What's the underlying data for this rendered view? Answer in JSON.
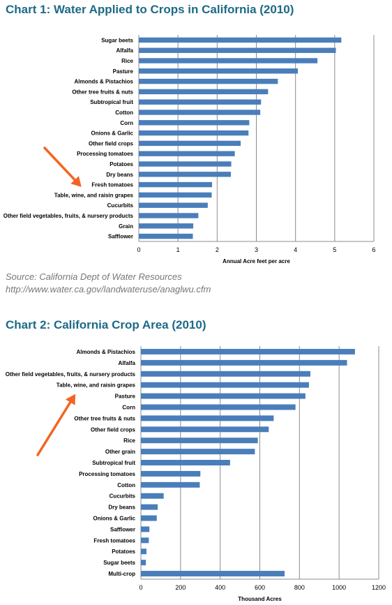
{
  "page": {
    "title1": "Chart 1: Water Applied to Crops in California (2010)",
    "title2": "Chart 2: California Crop Area (2010)",
    "source_line_1": "Source: California Dept of Water Resources",
    "source_line_2": "http://www.water.ca.gov/landwateruse/anaglwu.cfm"
  },
  "colors": {
    "bar": "#4a7ebb",
    "grid": "#8c8c8c",
    "title": "#1d6a86",
    "arrow": "#f26522"
  },
  "chart_data": [
    {
      "type": "bar",
      "orientation": "horizontal",
      "title": "Chart 1: Water Applied to Crops in California (2010)",
      "xlabel": "Annual Acre feet per acre",
      "ylabel": "",
      "xlim": [
        0,
        6
      ],
      "xticks": [
        "0",
        "1",
        "2",
        "3",
        "4",
        "5",
        "6"
      ],
      "grid": true,
      "categories": [
        "Sugar beets",
        "Alfalfa",
        "Rice",
        "Pasture",
        "Almonds & Pistachios",
        "Other tree fruits & nuts",
        "Subtropical fruit",
        "Cotton",
        "Corn",
        "Onions & Garlic",
        "Other field crops",
        "Processing tomatoes",
        "Potatoes",
        "Dry beans",
        "Fresh tomatoes",
        "Table, wine, and raisin grapes",
        "Cucurbits",
        "Other field vegetables, fruits, & nursery products",
        "Grain",
        "Safflower"
      ],
      "values": [
        5.17,
        5.03,
        4.56,
        4.06,
        3.55,
        3.3,
        3.12,
        3.1,
        2.82,
        2.8,
        2.6,
        2.45,
        2.36,
        2.35,
        1.87,
        1.86,
        1.76,
        1.52,
        1.39,
        1.38
      ],
      "highlight": "Table, wine, and raisin grapes"
    },
    {
      "type": "bar",
      "orientation": "horizontal",
      "title": "Chart 2: California Crop Area (2010)",
      "xlabel": "Thousand Acres",
      "ylabel": "",
      "xlim": [
        0,
        1200
      ],
      "xticks": [
        "0",
        "200",
        "400",
        "600",
        "800",
        "1000",
        "1200"
      ],
      "grid": true,
      "categories": [
        "Almonds & Pistachios",
        "Alfalfa",
        "Other field vegetables, fruits, & nursery products",
        "Table, wine, and raisin grapes",
        "Pasture",
        "Corn",
        "Other tree fruits & nuts",
        "Other field crops",
        "Rice",
        "Other grain",
        "Subtropical fruit",
        "Processing tomatoes",
        "Cotton",
        "Cucurbits",
        "Dry beans",
        "Onions & Garlic",
        "Safflower",
        "Fresh tomatoes",
        "Potatoes",
        "Sugar beets",
        "Multi-crop"
      ],
      "values": [
        1080,
        1040,
        855,
        848,
        830,
        780,
        670,
        645,
        590,
        575,
        450,
        300,
        297,
        115,
        85,
        80,
        43,
        40,
        28,
        25,
        725
      ],
      "highlight": "Table, wine, and raisin grapes"
    }
  ]
}
